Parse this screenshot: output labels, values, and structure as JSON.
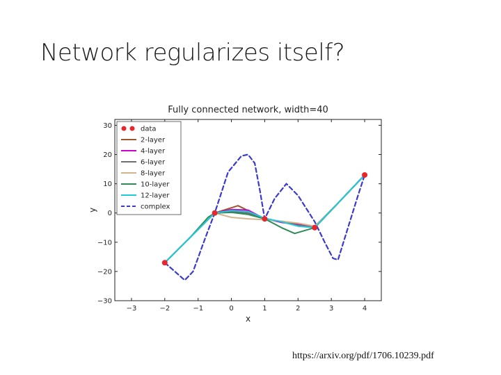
{
  "slide": {
    "title": "Network regularizes itself?",
    "source": "https://arxiv.org/pdf/1706.10239.pdf"
  },
  "chart_data": {
    "type": "line",
    "title": "Fully connected network, width=40",
    "xlabel": "x",
    "ylabel": "y",
    "xlim": [
      -3.5,
      4.5
    ],
    "ylim": [
      -30,
      32
    ],
    "xticks": [
      -3,
      -2,
      -1,
      0,
      1,
      2,
      3,
      4
    ],
    "yticks": [
      -30,
      -20,
      -10,
      0,
      10,
      20,
      30
    ],
    "xtick_labels": [
      "−3",
      "−2",
      "−1",
      "0",
      "1",
      "2",
      "3",
      "4"
    ],
    "ytick_labels": [
      "−30",
      "−20",
      "−10",
      "0",
      "10",
      "20",
      "30"
    ],
    "legend_position": "top-left",
    "data_points": {
      "name": "data",
      "color": "#e8262b",
      "x": [
        -2,
        -0.5,
        1,
        2.5,
        4
      ],
      "y": [
        -17,
        0,
        -2,
        -5,
        13
      ]
    },
    "series": [
      {
        "name": "2-layer",
        "color": "#a0522d",
        "dash": false,
        "x": [
          -2,
          -1.25,
          -0.5,
          0.2,
          1,
          1.5,
          2,
          2.5,
          3.25,
          4
        ],
        "y": [
          -17,
          -8.5,
          0,
          2.5,
          -2,
          -3,
          -3.8,
          -5,
          4,
          13
        ]
      },
      {
        "name": "4-layer",
        "color": "#cc00cc",
        "dash": false,
        "x": [
          -2,
          -1.25,
          -0.5,
          0,
          0.5,
          1,
          1.5,
          2,
          2.5,
          3.25,
          4
        ],
        "y": [
          -17,
          -8.5,
          0,
          1.2,
          1,
          -2,
          -3.2,
          -4,
          -5,
          4,
          13
        ]
      },
      {
        "name": "6-layer",
        "color": "#6e6e6e",
        "dash": false,
        "x": [
          -2,
          -1.25,
          -0.5,
          0,
          0.5,
          1,
          1.5,
          2,
          2.5,
          3.25,
          4
        ],
        "y": [
          -17,
          -8.5,
          0,
          0.5,
          0,
          -2,
          -3,
          -4.2,
          -5,
          4,
          13
        ]
      },
      {
        "name": "8-layer",
        "color": "#d2b48c",
        "dash": false,
        "x": [
          -2,
          -1.25,
          -0.5,
          0,
          0.5,
          1,
          1.5,
          2,
          2.5,
          3.25,
          4
        ],
        "y": [
          -17,
          -8.5,
          0,
          -1.5,
          -2,
          -2.3,
          -2.8,
          -3.5,
          -4.5,
          4,
          13
        ]
      },
      {
        "name": "10-layer",
        "color": "#2e8b57",
        "dash": false,
        "x": [
          -2,
          -1.25,
          -0.7,
          -0.5,
          0,
          0.5,
          1,
          1.5,
          1.9,
          2.5,
          3.25,
          4
        ],
        "y": [
          -17,
          -8.5,
          -1.5,
          0,
          0.2,
          -0.5,
          -2,
          -5,
          -7,
          -5,
          4,
          13
        ]
      },
      {
        "name": "12-layer",
        "color": "#20c8d8",
        "dash": false,
        "x": [
          -2,
          -1.25,
          -0.5,
          0,
          0.5,
          1,
          1.5,
          2,
          2.5,
          3.25,
          4
        ],
        "y": [
          -17,
          -8.5,
          0,
          0.8,
          0.5,
          -1.8,
          -3,
          -4.5,
          -5,
          4,
          13
        ]
      },
      {
        "name": "complex",
        "color": "#3a3ad0",
        "dash": true,
        "x": [
          -2,
          -1.7,
          -1.4,
          -1.15,
          -0.8,
          -0.5,
          -0.1,
          0.3,
          0.5,
          0.7,
          0.85,
          1,
          1.3,
          1.65,
          2,
          2.5,
          2.8,
          3.05,
          3.2,
          3.5,
          3.8,
          4
        ],
        "y": [
          -17,
          -20,
          -23,
          -20,
          -9,
          0,
          14,
          19.5,
          20,
          17,
          8,
          -2,
          5,
          10,
          6,
          -3,
          -10,
          -15.5,
          -16,
          -5,
          6,
          13
        ]
      }
    ]
  }
}
